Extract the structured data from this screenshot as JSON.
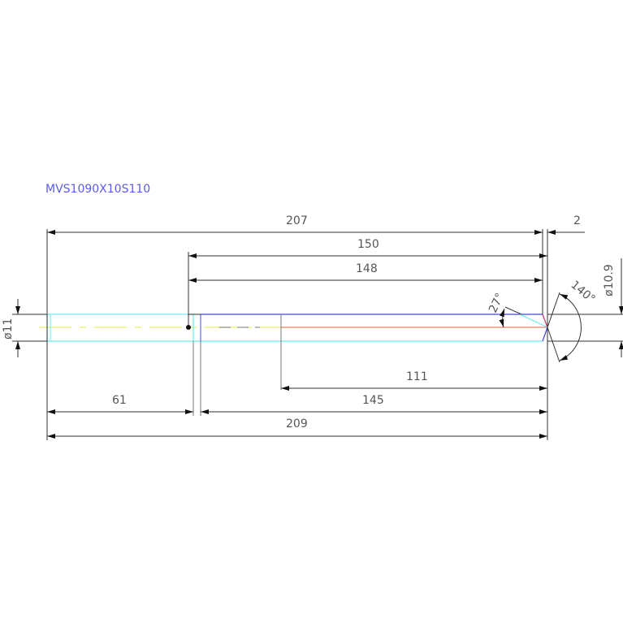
{
  "title": "MVS1090X10S110",
  "dimensions": {
    "overall_top": "207",
    "tip_gap": "2",
    "to_tip": "150",
    "to_shoulder": "148",
    "flute_diameter": "ø10.9",
    "shank_diameter": "ø11",
    "tip_relief_angle": "27°",
    "point_angle": "140°",
    "flute_length": "111",
    "body_length": "145",
    "shank_length": "61",
    "overall_length": "209"
  },
  "colors": {
    "shank": "#66eeee",
    "flute": "#4444dd",
    "center_red": "#e8603c",
    "center_yellow": "#eeee66",
    "tip_red": "#cc3366",
    "lines": "#333333"
  }
}
